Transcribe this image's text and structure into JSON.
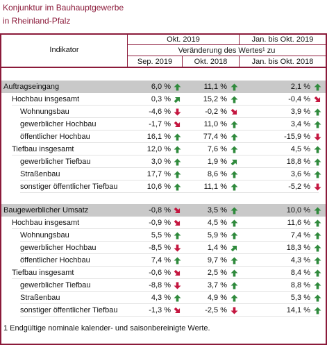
{
  "title": [
    "Konjunktur im Bauhauptgewerbe",
    "in Rheinland-Pfalz"
  ],
  "header": {
    "indicator": "Indikator",
    "period_main": "Okt. 2019",
    "period_ytd": "Jan. bis Okt. 2019",
    "change": "Veränderung des Wertes¹ zu",
    "compare": [
      "Sep. 2019",
      "Okt. 2018",
      "Jan. bis Okt. 2018"
    ]
  },
  "sections": [
    {
      "rows": [
        {
          "label": "Auftragseingang",
          "level": 0,
          "values": [
            "6,0 %",
            "11,1 %",
            "2,1 %"
          ],
          "trends": [
            "up",
            "up",
            "up"
          ]
        },
        {
          "label": "Hochbau insgesamt",
          "level": 1,
          "values": [
            "0,3 %",
            "15,2 %",
            "-0,4 %"
          ],
          "trends": [
            "up-right",
            "up",
            "down-right"
          ]
        },
        {
          "label": "Wohnungsbau",
          "level": 2,
          "values": [
            "-4,6 %",
            "-0,2 %",
            "3,9 %"
          ],
          "trends": [
            "down",
            "down-right",
            "up"
          ]
        },
        {
          "label": "gewerblicher Hochbau",
          "level": 2,
          "values": [
            "-1,7 %",
            "11,0 %",
            "3,4 %"
          ],
          "trends": [
            "down-right",
            "up",
            "up"
          ]
        },
        {
          "label": "öffentlicher Hochbau",
          "level": 2,
          "values": [
            "16,1 %",
            "77,4 %",
            "-15,9 %"
          ],
          "trends": [
            "up",
            "up",
            "down"
          ]
        },
        {
          "label": "Tiefbau insgesamt",
          "level": 1,
          "values": [
            "12,0 %",
            "7,6 %",
            "4,5 %"
          ],
          "trends": [
            "up",
            "up",
            "up"
          ]
        },
        {
          "label": "gewerblicher Tiefbau",
          "level": 2,
          "values": [
            "3,0 %",
            "1,9 %",
            "18,8 %"
          ],
          "trends": [
            "up",
            "up-right",
            "up"
          ]
        },
        {
          "label": "Straßenbau",
          "level": 2,
          "values": [
            "17,7 %",
            "8,6 %",
            "3,6 %"
          ],
          "trends": [
            "up",
            "up",
            "up"
          ]
        },
        {
          "label": "sonstiger öffentlicher Tiefbau",
          "level": 2,
          "values": [
            "10,6 %",
            "11,1 %",
            "-5,2 %"
          ],
          "trends": [
            "up",
            "up",
            "down"
          ]
        }
      ]
    },
    {
      "rows": [
        {
          "label": "Baugewerblicher Umsatz",
          "level": 0,
          "values": [
            "-0,8 %",
            "3,5 %",
            "10,0 %"
          ],
          "trends": [
            "down-right",
            "up",
            "up"
          ]
        },
        {
          "label": "Hochbau insgesamt",
          "level": 1,
          "values": [
            "-0,9 %",
            "4,5 %",
            "11,6 %"
          ],
          "trends": [
            "down-right",
            "up",
            "up"
          ]
        },
        {
          "label": "Wohnungsbau",
          "level": 2,
          "values": [
            "5,5 %",
            "5,9 %",
            "7,4 %"
          ],
          "trends": [
            "up",
            "up",
            "up"
          ]
        },
        {
          "label": "gewerblicher Hochbau",
          "level": 2,
          "values": [
            "-8,5 %",
            "1,4 %",
            "18,3 %"
          ],
          "trends": [
            "down",
            "up-right",
            "up"
          ]
        },
        {
          "label": "öffentlicher Hochbau",
          "level": 2,
          "values": [
            "7,4 %",
            "9,7 %",
            "4,3 %"
          ],
          "trends": [
            "up",
            "up",
            "up"
          ]
        },
        {
          "label": "Tiefbau insgesamt",
          "level": 1,
          "values": [
            "-0,6 %",
            "2,5 %",
            "8,4 %"
          ],
          "trends": [
            "down-right",
            "up",
            "up"
          ]
        },
        {
          "label": "gewerblicher Tiefbau",
          "level": 2,
          "values": [
            "-8,8 %",
            "3,7 %",
            "8,8 %"
          ],
          "trends": [
            "down",
            "up",
            "up"
          ]
        },
        {
          "label": "Straßenbau",
          "level": 2,
          "values": [
            "4,3 %",
            "4,9 %",
            "5,3 %"
          ],
          "trends": [
            "up",
            "up",
            "up"
          ]
        },
        {
          "label": "sonstiger öffentlicher Tiefbau",
          "level": 2,
          "values": [
            "-1,3 %",
            "-2,5 %",
            "14,1 %"
          ],
          "trends": [
            "down-right",
            "down",
            "up"
          ]
        }
      ]
    }
  ],
  "footnote": "1 Endgültige nominale kalender- und saisonbereinigte Werte."
}
